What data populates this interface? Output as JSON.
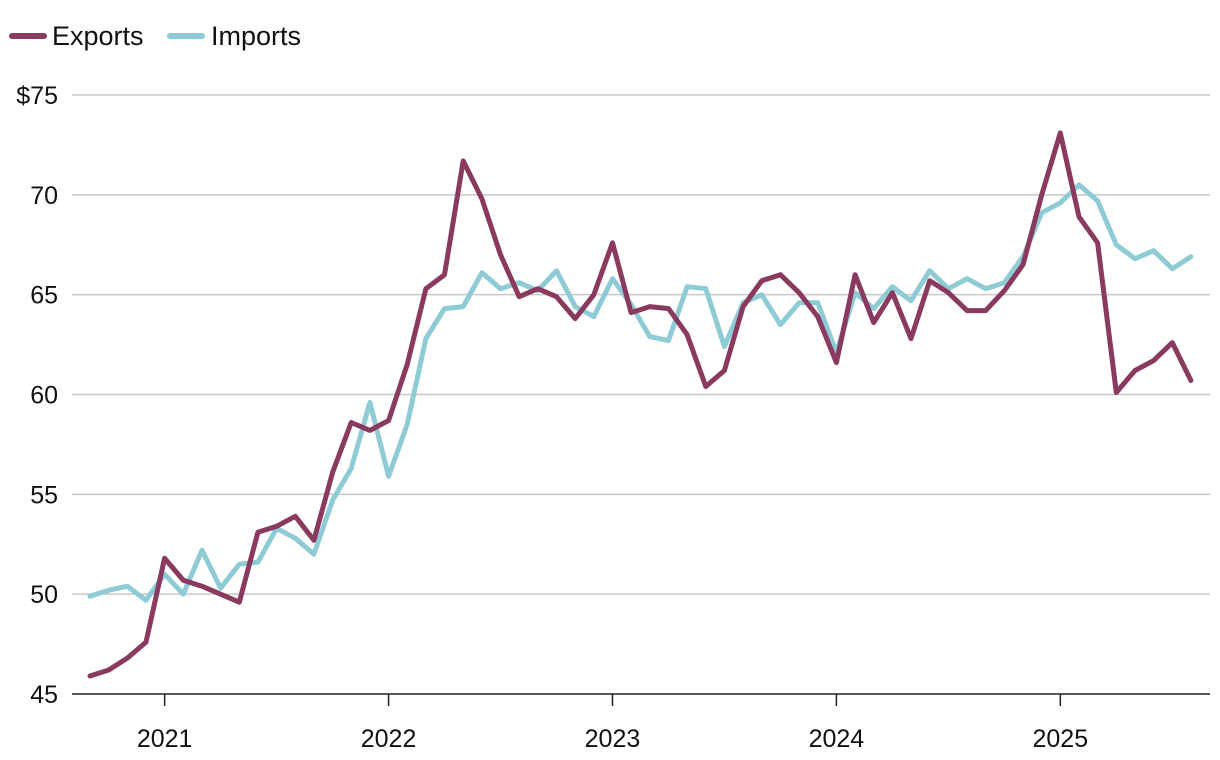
{
  "chart_data": {
    "type": "line",
    "title": "",
    "xlabel": "",
    "ylabel": "",
    "ylim": [
      45,
      75
    ],
    "y_ticks": [
      {
        "value": 75,
        "label": "$75"
      },
      {
        "value": 70,
        "label": "70"
      },
      {
        "value": 65,
        "label": "65"
      },
      {
        "value": 60,
        "label": "60"
      },
      {
        "value": 55,
        "label": "55"
      },
      {
        "value": 50,
        "label": "50"
      },
      {
        "value": 45,
        "label": "45"
      }
    ],
    "x_ticks": [
      {
        "month_index": 4,
        "label": "2021"
      },
      {
        "month_index": 16,
        "label": "2022"
      },
      {
        "month_index": 28,
        "label": "2023"
      },
      {
        "month_index": 40,
        "label": "2024"
      },
      {
        "month_index": 52,
        "label": "2025"
      }
    ],
    "x_range": [
      "2020-09",
      "2025-08"
    ],
    "grid": true,
    "legend_placement": "top-left",
    "series": [
      {
        "name": "Exports",
        "color": "#8a3a5e",
        "values": [
          45.9,
          46.2,
          46.8,
          47.6,
          51.8,
          50.7,
          50.4,
          50.0,
          49.6,
          53.1,
          53.4,
          53.9,
          52.7,
          56.1,
          58.6,
          58.2,
          58.7,
          61.5,
          65.3,
          66.0,
          71.7,
          69.8,
          67.0,
          64.9,
          65.3,
          64.9,
          63.8,
          65.0,
          67.6,
          64.1,
          64.4,
          64.3,
          63.0,
          60.4,
          61.2,
          64.4,
          65.7,
          66.0,
          65.1,
          63.9,
          61.6,
          66.0,
          63.6,
          65.1,
          62.8,
          65.7,
          65.1,
          64.2,
          64.2,
          65.2,
          66.5,
          70.0,
          73.1,
          68.9,
          67.6,
          60.1,
          61.2,
          61.7,
          62.6,
          60.7
        ]
      },
      {
        "name": "Imports",
        "color": "#8ecbd4",
        "values": [
          49.9,
          50.2,
          50.4,
          49.7,
          51.0,
          50.0,
          52.2,
          50.3,
          51.5,
          51.6,
          53.3,
          52.8,
          52.0,
          54.7,
          56.3,
          59.6,
          55.9,
          58.5,
          62.8,
          64.3,
          64.4,
          66.1,
          65.3,
          65.6,
          65.2,
          66.2,
          64.4,
          63.9,
          65.8,
          64.5,
          62.9,
          62.7,
          65.4,
          65.3,
          62.4,
          64.6,
          65.0,
          63.5,
          64.6,
          64.6,
          62.1,
          65.1,
          64.3,
          65.4,
          64.7,
          66.2,
          65.3,
          65.8,
          65.3,
          65.6,
          66.9,
          69.1,
          69.6,
          70.5,
          69.7,
          67.5,
          66.8,
          67.2,
          66.3,
          66.9
        ]
      }
    ]
  }
}
